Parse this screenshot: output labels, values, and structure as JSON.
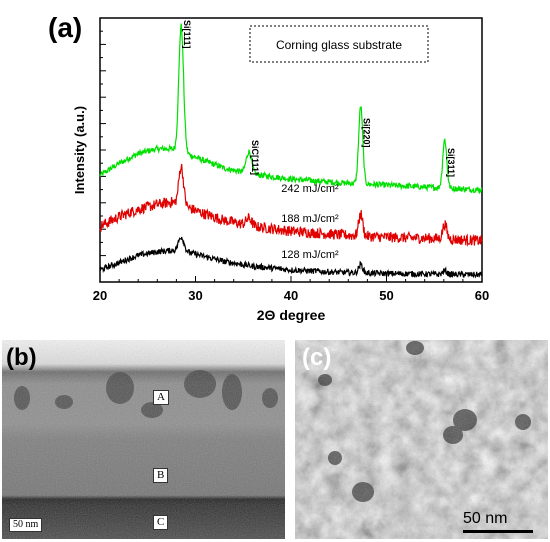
{
  "panels": {
    "a": "(a)",
    "b": "(b)",
    "c": "(c)"
  },
  "chart_data": {
    "type": "line",
    "xlabel": "2Θ degree",
    "ylabel": "Intensity (a.u.)",
    "xlim": [
      20,
      60
    ],
    "x_ticks": [
      20,
      30,
      40,
      50,
      60
    ],
    "legend_box": "Corning glass substrate",
    "peak_labels": [
      {
        "text": "Si[111]",
        "x": 28.5
      },
      {
        "text": "SiC[111]",
        "x": 35.6
      },
      {
        "text": "Si[220]",
        "x": 47.3
      },
      {
        "text": "Si[311]",
        "x": 56.1
      }
    ],
    "series": [
      {
        "name": "242 mJ/cm²",
        "color": "#00e000",
        "offset": 3.5,
        "baseline": [
          [
            20,
            0.6
          ],
          [
            22,
            1.1
          ],
          [
            24,
            1.5
          ],
          [
            26,
            1.7
          ],
          [
            27.5,
            1.7
          ],
          [
            29,
            1.5
          ],
          [
            31,
            1.2
          ],
          [
            33,
            0.9
          ],
          [
            36,
            0.65
          ],
          [
            40,
            0.45
          ],
          [
            45,
            0.3
          ],
          [
            50,
            0.2
          ],
          [
            55,
            0.1
          ],
          [
            60,
            0.0
          ]
        ],
        "peaks": [
          [
            28.5,
            5.2,
            0.35
          ],
          [
            35.6,
            0.9,
            0.4
          ],
          [
            47.3,
            3.2,
            0.3
          ],
          [
            56.1,
            2.0,
            0.3
          ]
        ]
      },
      {
        "name": "188 mJ/cm²",
        "color": "#e00000",
        "offset": 1.4,
        "baseline": [
          [
            20,
            0.6
          ],
          [
            22,
            1.0
          ],
          [
            24,
            1.3
          ],
          [
            26,
            1.5
          ],
          [
            27.5,
            1.6
          ],
          [
            29,
            1.4
          ],
          [
            31,
            1.1
          ],
          [
            33,
            0.85
          ],
          [
            36,
            0.6
          ],
          [
            40,
            0.4
          ],
          [
            45,
            0.25
          ],
          [
            50,
            0.15
          ],
          [
            55,
            0.1
          ],
          [
            60,
            0.0
          ]
        ],
        "peaks": [
          [
            28.5,
            1.6,
            0.35
          ],
          [
            35.6,
            0.3,
            0.4
          ],
          [
            47.3,
            0.9,
            0.3
          ],
          [
            56.1,
            0.6,
            0.3
          ]
        ]
      },
      {
        "name": "128 mJ/cm²",
        "color": "#000000",
        "offset": 0.0,
        "baseline": [
          [
            20,
            0.2
          ],
          [
            22,
            0.5
          ],
          [
            24,
            0.8
          ],
          [
            26,
            0.95
          ],
          [
            27.5,
            1.0
          ],
          [
            29,
            0.95
          ],
          [
            31,
            0.75
          ],
          [
            33,
            0.55
          ],
          [
            36,
            0.35
          ],
          [
            40,
            0.2
          ],
          [
            45,
            0.1
          ],
          [
            50,
            0.05
          ],
          [
            55,
            0.02
          ],
          [
            60,
            0.0
          ]
        ],
        "peaks": [
          [
            28.5,
            0.6,
            0.4
          ],
          [
            47.3,
            0.35,
            0.3
          ],
          [
            56.1,
            0.15,
            0.3
          ]
        ]
      }
    ]
  },
  "tem_b": {
    "layers": [
      "A",
      "B",
      "C"
    ],
    "scale": "50 nm"
  },
  "tem_c": {
    "scale": "50 nm"
  }
}
